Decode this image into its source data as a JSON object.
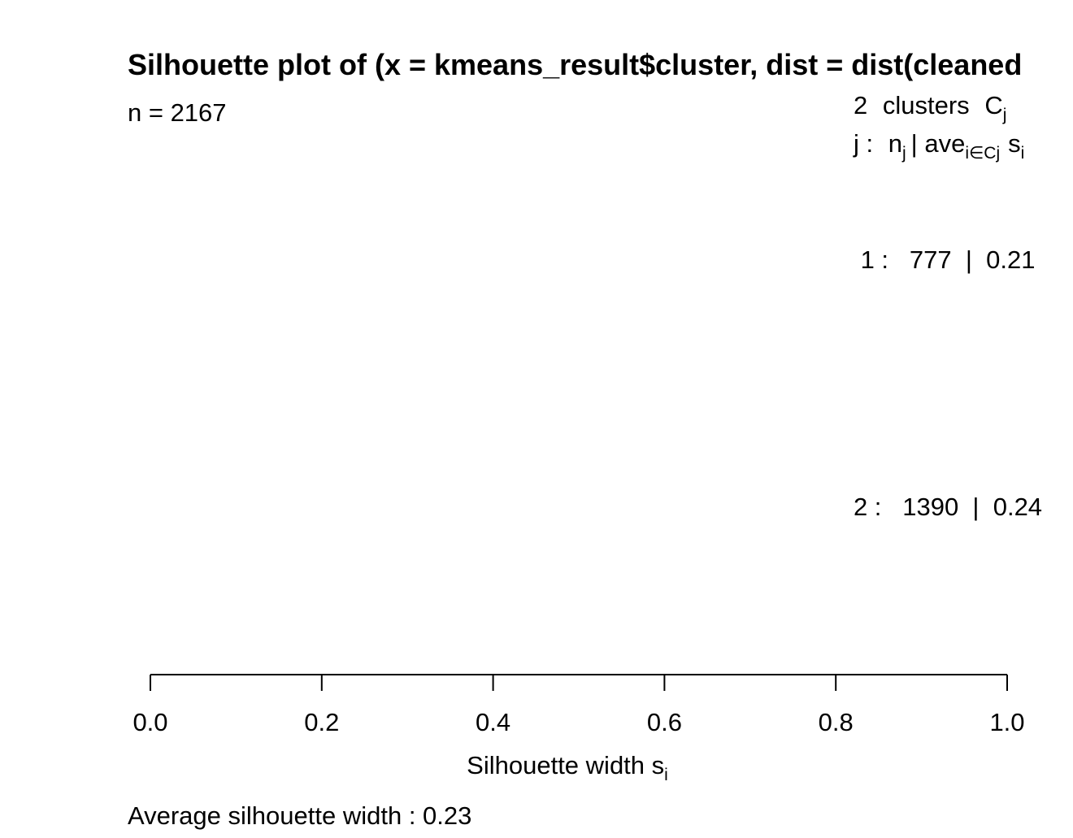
{
  "chart_data": {
    "type": "bar",
    "title": "Silhouette plot of (x = kmeans_result$cluster, dist = dist(cleaned",
    "subtitle_n": "n = 2167",
    "legend_header": {
      "clusters_count": "2",
      "clusters_word": "clusters",
      "cluster_symbol": "C",
      "cluster_symbol_sub": "j",
      "columns_prefix": "j :",
      "n_symbol": "n",
      "n_sub": "j",
      "separator": "| ave",
      "ave_sub": "i∈Cj",
      "s_symbol": "s",
      "s_sub": "i"
    },
    "clusters": [
      {
        "label": "1 :   777  |  0.21",
        "cluster": 1,
        "size": 777,
        "avg_width": 0.21
      },
      {
        "label": "2 :   1390  |  0.24",
        "cluster": 2,
        "size": 1390,
        "avg_width": 0.24
      }
    ],
    "x_axis": {
      "label": "Silhouette width s",
      "label_sub": "i",
      "ticks": [
        0.0,
        0.2,
        0.4,
        0.6,
        0.8,
        1.0
      ],
      "tick_labels": [
        "0.0",
        "0.2",
        "0.4",
        "0.6",
        "0.8",
        "1.0"
      ],
      "xlim": [
        0.0,
        1.0
      ]
    },
    "footer": "Average silhouette width :  0.23",
    "average_width": 0.23,
    "colors": {
      "ink": "#000000",
      "background": "#ffffff"
    }
  }
}
